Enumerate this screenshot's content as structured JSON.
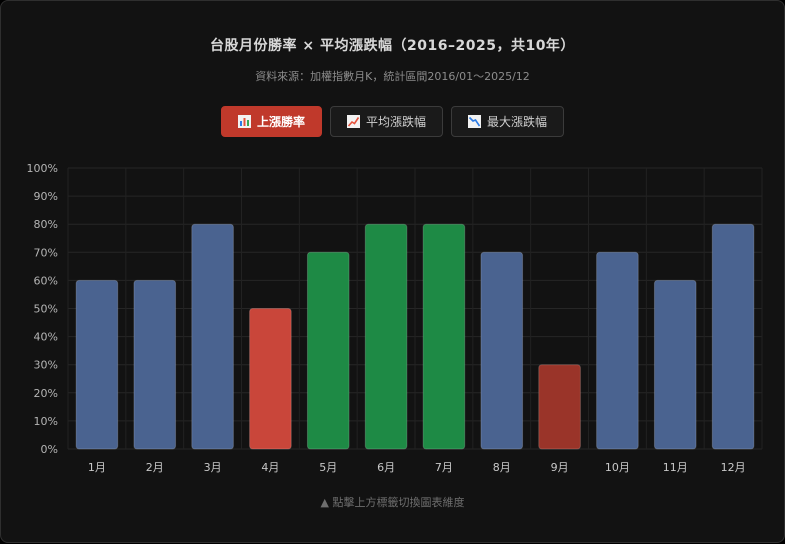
{
  "header": {
    "title": "台股月份勝率 × 平均漲跌幅（2016–2025，共10年）",
    "subtitle": "資料來源：加權指數月K，統計區間2016/01～2025/12"
  },
  "tabs": [
    {
      "label": "上漲勝率",
      "icon": "bar-chart-icon",
      "active": true
    },
    {
      "label": "平均漲跌幅",
      "icon": "line-chart-icon",
      "active": false
    },
    {
      "label": "最大漲跌幅",
      "icon": "trend-chart-icon",
      "active": false
    }
  ],
  "footer": {
    "hint": "▲ 點擊上方標籤切換圖表維度"
  },
  "colors": {
    "neutral": "#4a6390",
    "green": "#1e8a45",
    "red": "#c9463a",
    "dark_red": "#9a3429"
  },
  "chart_data": {
    "type": "bar",
    "categories": [
      "1月",
      "2月",
      "3月",
      "4月",
      "5月",
      "6月",
      "7月",
      "8月",
      "9月",
      "10月",
      "11月",
      "12月"
    ],
    "values": [
      60,
      60,
      80,
      50,
      70,
      80,
      80,
      70,
      30,
      70,
      60,
      80
    ],
    "bar_colors": [
      "#4a6390",
      "#4a6390",
      "#4a6390",
      "#c9463a",
      "#1e8a45",
      "#1e8a45",
      "#1e8a45",
      "#4a6390",
      "#9a3429",
      "#4a6390",
      "#4a6390",
      "#4a6390"
    ],
    "yticks": [
      "0%",
      "10%",
      "20%",
      "30%",
      "40%",
      "50%",
      "60%",
      "70%",
      "80%",
      "90%",
      "100%"
    ],
    "ylim": [
      0,
      100
    ],
    "grid": true
  }
}
